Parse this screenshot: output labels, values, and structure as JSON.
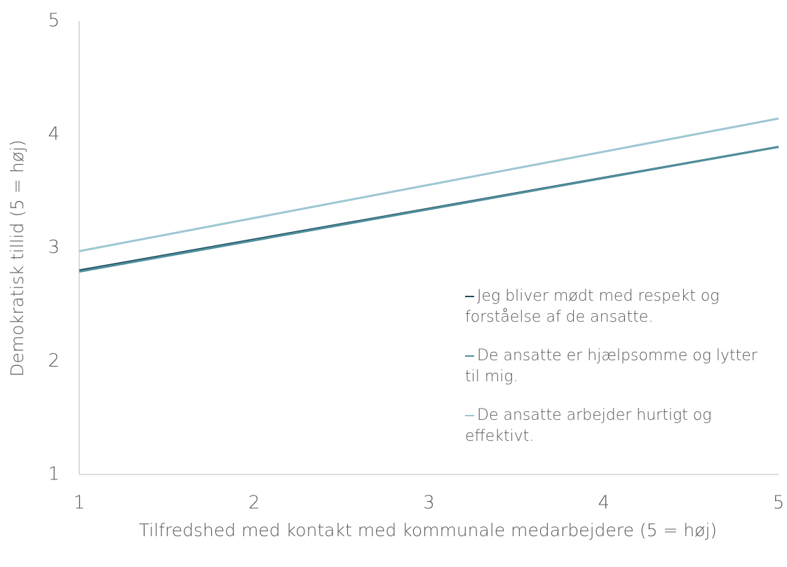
{
  "chart_data": {
    "type": "line",
    "x": [
      1,
      5
    ],
    "xlim": [
      1,
      5
    ],
    "xticks": [
      1,
      2,
      3,
      4,
      5
    ],
    "ylim": [
      1,
      5
    ],
    "yticks": [
      1,
      2,
      3,
      4,
      5
    ],
    "xlabel": "Tilfredshed med kontakt med kommunale medarbejdere (5 = høj)",
    "ylabel": "Demokratisk tillid (5 = høj)",
    "legend": "right",
    "grid": false,
    "series": [
      {
        "name": "Jeg bliver mødt med respekt og forståelse af de ansatte.",
        "color": "#1f4a5c",
        "values": [
          2.8,
          3.89
        ]
      },
      {
        "name": "De ansatte er hjælpsomme og lytter til mig.",
        "color": "#4f8e9c",
        "values": [
          2.79,
          3.89
        ]
      },
      {
        "name": "De ansatte arbejder hurtigt og effektivt.",
        "color": "#9dc7d3",
        "values": [
          2.97,
          4.14
        ]
      }
    ]
  }
}
